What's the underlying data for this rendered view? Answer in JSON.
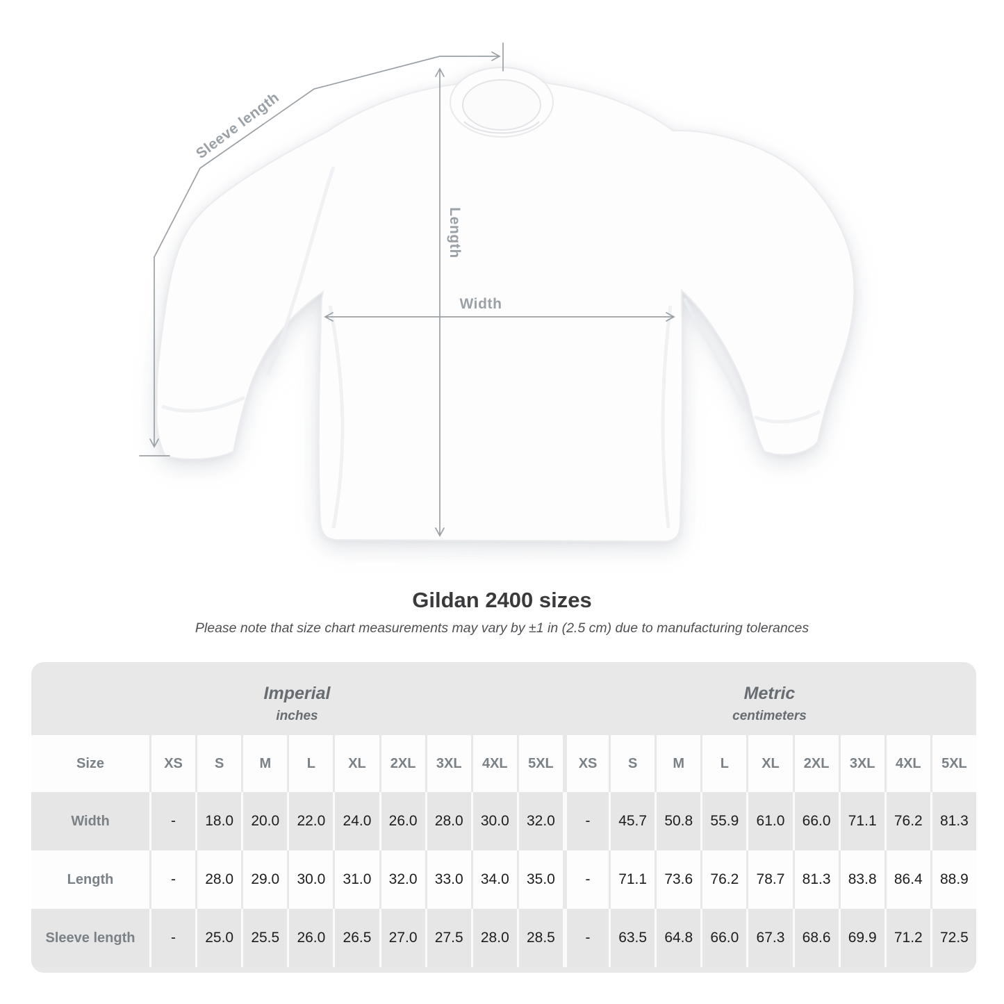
{
  "page": {
    "title": "Gildan 2400 sizes",
    "subtitle": "Please note that size chart measurements may vary by ±1 in (2.5 cm) due to manufacturing tolerances"
  },
  "diagram": {
    "sleeve_length_label": "Sleeve length",
    "length_label": "Length",
    "width_label": "Width"
  },
  "size_table": {
    "corner_label": "Size",
    "sections": [
      {
        "name": "Imperial",
        "unit": "inches"
      },
      {
        "name": "Metric",
        "unit": "centimeters"
      }
    ],
    "sizes": [
      "XS",
      "S",
      "M",
      "L",
      "XL",
      "2XL",
      "3XL",
      "4XL",
      "5XL"
    ],
    "rows": [
      {
        "label": "Width",
        "imperial": [
          "-",
          "18.0",
          "20.0",
          "22.0",
          "24.0",
          "26.0",
          "28.0",
          "30.0",
          "32.0"
        ],
        "metric": [
          "-",
          "45.7",
          "50.8",
          "55.9",
          "61.0",
          "66.0",
          "71.1",
          "76.2",
          "81.3"
        ]
      },
      {
        "label": "Length",
        "imperial": [
          "-",
          "28.0",
          "29.0",
          "30.0",
          "31.0",
          "32.0",
          "33.0",
          "34.0",
          "35.0"
        ],
        "metric": [
          "-",
          "71.1",
          "73.6",
          "76.2",
          "78.7",
          "81.3",
          "83.8",
          "86.4",
          "88.9"
        ]
      },
      {
        "label": "Sleeve length",
        "imperial": [
          "-",
          "25.0",
          "25.5",
          "26.0",
          "26.5",
          "27.0",
          "27.5",
          "28.0",
          "28.5"
        ],
        "metric": [
          "-",
          "63.5",
          "64.8",
          "66.0",
          "67.3",
          "68.6",
          "69.9",
          "71.2",
          "72.5"
        ]
      }
    ]
  },
  "colors": {
    "arrow_gray": "#9aa0a5",
    "card_bg": "#e9e8e8",
    "row_gray": "#e7e6e6",
    "row_white": "#fdfdfd",
    "label_text": "#798086",
    "value_text": "#1d1d1f"
  }
}
